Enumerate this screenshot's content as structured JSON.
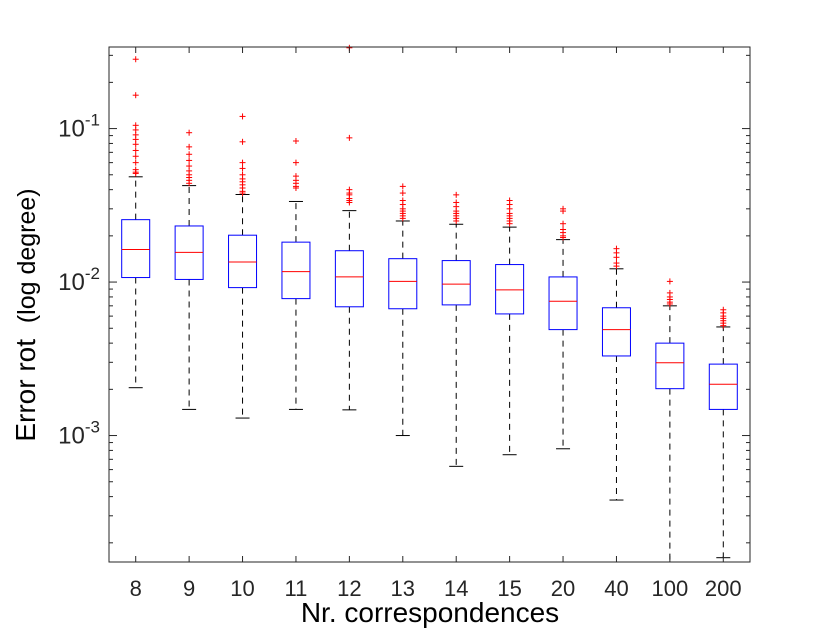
{
  "chart_data": {
    "type": "box",
    "xlabel": "Nr. correspondences",
    "ylabel_main": "Error rot",
    "ylabel_sub": "(log degree)",
    "yscale": "log",
    "ylim": [
      0.00015,
      0.34
    ],
    "yticks": [
      {
        "value": 0.1,
        "base": "10",
        "exp": "-1"
      },
      {
        "value": 0.01,
        "base": "10",
        "exp": "-2"
      },
      {
        "value": 0.001,
        "base": "10",
        "exp": "-3"
      }
    ],
    "grid": false,
    "colors": {
      "box": "#0000ff",
      "median": "#ff0000",
      "whisker": "#000000",
      "outlier": "#ff0000",
      "axis": "#262626"
    },
    "categories": [
      "8",
      "9",
      "10",
      "11",
      "12",
      "13",
      "14",
      "15",
      "20",
      "40",
      "100",
      "200"
    ],
    "boxes": [
      {
        "category": "8",
        "whisker_low": 0.00205,
        "q1": 0.0107,
        "median": 0.0163,
        "q3": 0.0255,
        "whisker_high": 0.0485,
        "outliers": [
          0.283,
          0.165,
          0.105,
          0.098,
          0.091,
          0.085,
          0.079,
          0.072,
          0.066,
          0.06,
          0.054,
          0.052,
          0.051
        ]
      },
      {
        "category": "9",
        "whisker_low": 0.00148,
        "q1": 0.0104,
        "median": 0.0156,
        "q3": 0.0232,
        "whisker_high": 0.0425,
        "outliers": [
          0.094,
          0.076,
          0.068,
          0.062,
          0.057,
          0.053,
          0.05,
          0.048,
          0.046,
          0.044
        ]
      },
      {
        "category": "10",
        "whisker_low": 0.0013,
        "q1": 0.0092,
        "median": 0.0135,
        "q3": 0.0202,
        "whisker_high": 0.0372,
        "outliers": [
          0.12,
          0.082,
          0.06,
          0.055,
          0.05,
          0.047,
          0.045,
          0.043,
          0.041,
          0.039,
          0.038
        ]
      },
      {
        "category": "11",
        "whisker_low": 0.00148,
        "q1": 0.0078,
        "median": 0.0117,
        "q3": 0.0182,
        "whisker_high": 0.0335,
        "outliers": [
          0.083,
          0.06,
          0.049,
          0.046,
          0.044,
          0.042,
          0.041
        ]
      },
      {
        "category": "12",
        "whisker_low": 0.00147,
        "q1": 0.0069,
        "median": 0.0108,
        "q3": 0.016,
        "whisker_high": 0.0292,
        "outliers": [
          0.336,
          0.087,
          0.04,
          0.038,
          0.037,
          0.035,
          0.034,
          0.033
        ]
      },
      {
        "category": "13",
        "whisker_low": 0.001,
        "q1": 0.0067,
        "median": 0.0101,
        "q3": 0.0142,
        "whisker_high": 0.025,
        "outliers": [
          0.042,
          0.038,
          0.034,
          0.032,
          0.03,
          0.029,
          0.028,
          0.027,
          0.026
        ]
      },
      {
        "category": "14",
        "whisker_low": 0.00063,
        "q1": 0.0071,
        "median": 0.0097,
        "q3": 0.0138,
        "whisker_high": 0.0238,
        "outliers": [
          0.037,
          0.033,
          0.031,
          0.029,
          0.028,
          0.027,
          0.026,
          0.025
        ]
      },
      {
        "category": "15",
        "whisker_low": 0.00075,
        "q1": 0.0062,
        "median": 0.0089,
        "q3": 0.013,
        "whisker_high": 0.0228,
        "outliers": [
          0.034,
          0.032,
          0.03,
          0.028,
          0.027,
          0.026,
          0.025,
          0.024
        ]
      },
      {
        "category": "20",
        "whisker_low": 0.00082,
        "q1": 0.0049,
        "median": 0.0075,
        "q3": 0.0108,
        "whisker_high": 0.0189,
        "outliers": [
          0.03,
          0.029,
          0.024,
          0.022,
          0.021,
          0.02,
          0.0195
        ]
      },
      {
        "category": "40",
        "whisker_low": 0.00038,
        "q1": 0.0033,
        "median": 0.0049,
        "q3": 0.0068,
        "whisker_high": 0.0122,
        "outliers": [
          0.0165,
          0.0155,
          0.0145,
          0.0133,
          0.0127
        ]
      },
      {
        "category": "100",
        "whisker_low": 0.00015,
        "q1": 0.00202,
        "median": 0.00298,
        "q3": 0.004,
        "whisker_high": 0.007,
        "outliers": [
          0.0101,
          0.0085,
          0.008,
          0.0077,
          0.0074,
          0.0072
        ]
      },
      {
        "category": "200",
        "whisker_low": 0.00016,
        "q1": 0.00148,
        "median": 0.00216,
        "q3": 0.00292,
        "whisker_high": 0.0051,
        "outliers": [
          0.0066,
          0.0063,
          0.006,
          0.0058,
          0.0056,
          0.0054,
          0.0052
        ]
      }
    ]
  }
}
